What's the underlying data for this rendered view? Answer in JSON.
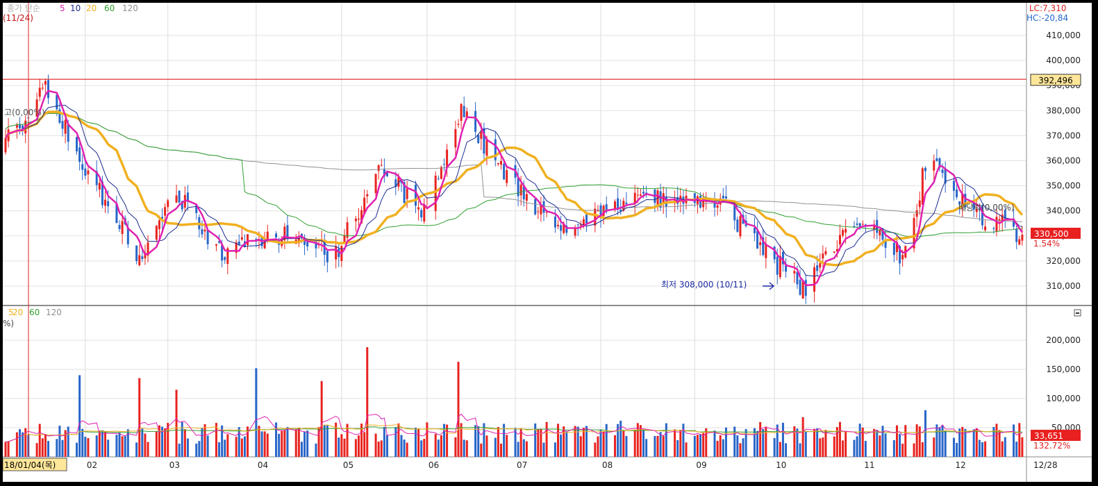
{
  "price_legend": {
    "prefix": "종가 단순",
    "items": [
      "5",
      "10",
      "20",
      "60",
      "120"
    ],
    "date": "(11/24)"
  },
  "volume_legend": {
    "items": [
      "5",
      "20",
      "60",
      "120"
    ],
    "extra": "%)"
  },
  "lc_label": "LC:7,310",
  "hc_label": "HC:-20,84",
  "left_marker": "고(0,00%)",
  "right_marker": "배당락(0,00%)",
  "low_annotation": "최저 308,000 (10/11)",
  "price_axis_ticks": [
    "410,000",
    "400,000",
    "390,000",
    "380,000",
    "370,000",
    "360,000",
    "350,000",
    "340,000",
    "330,000",
    "320,000",
    "310,000"
  ],
  "volume_axis_ticks": [
    "200,000",
    "150,000",
    "100,000",
    "50,000"
  ],
  "price_hline_label": "392,496",
  "current_price_label": "330,500",
  "current_change_label": "1.54%",
  "current_volume_label": "33,651",
  "current_volume_pct_label": "132.72%",
  "x_axis_labels": [
    "18/01/04(목)",
    "02",
    "03",
    "04",
    "05",
    "06",
    "07",
    "08",
    "09",
    "10",
    "11",
    "12",
    "12/28"
  ],
  "colors": {
    "up": "#e8231f",
    "down": "#2866c8",
    "ma5": "#e020b0",
    "ma10": "#1a2a90",
    "ma20": "#f0b020",
    "ma60": "#30a030",
    "ma120": "#909090",
    "hline": "#e02020"
  },
  "chart_data": [
    {
      "type": "candlestick",
      "title": "",
      "x_range": [
        "2018-01-04",
        "2018-12-28"
      ],
      "ylim": [
        302000,
        414000
      ],
      "monthly_price_path": [
        {
          "x": "2018-01-04",
          "y": 368000
        },
        {
          "x": "2018-01-18",
          "y": 388000
        },
        {
          "x": "2018-01-30",
          "y": 362000
        },
        {
          "x": "2018-02-20",
          "y": 322000
        },
        {
          "x": "2018-03-05",
          "y": 348000
        },
        {
          "x": "2018-03-20",
          "y": 324000
        },
        {
          "x": "2018-04-10",
          "y": 330000
        },
        {
          "x": "2018-04-30",
          "y": 322000
        },
        {
          "x": "2018-05-15",
          "y": 356000
        },
        {
          "x": "2018-05-31",
          "y": 340000
        },
        {
          "x": "2018-06-13",
          "y": 381000
        },
        {
          "x": "2018-06-29",
          "y": 352000
        },
        {
          "x": "2018-07-20",
          "y": 330000
        },
        {
          "x": "2018-08-10",
          "y": 345000
        },
        {
          "x": "2018-09-14",
          "y": 341000
        },
        {
          "x": "2018-10-11",
          "y": 308000
        },
        {
          "x": "2018-10-31",
          "y": 338000
        },
        {
          "x": "2018-11-15",
          "y": 322000
        },
        {
          "x": "2018-11-24",
          "y": 362000
        },
        {
          "x": "2018-12-10",
          "y": 340000
        },
        {
          "x": "2018-12-28",
          "y": 330500
        }
      ],
      "series": [
        {
          "name": "5",
          "kind": "moving_average",
          "period": 5
        },
        {
          "name": "10",
          "kind": "moving_average",
          "period": 10
        },
        {
          "name": "20",
          "kind": "moving_average",
          "period": 20
        },
        {
          "name": "60",
          "kind": "moving_average",
          "period": 60
        },
        {
          "name": "120",
          "kind": "moving_average",
          "period": 120
        }
      ],
      "hline": 392496,
      "last_close": 330500,
      "low": {
        "value": 308000,
        "date": "2018-10-11"
      }
    },
    {
      "type": "bar",
      "title": "",
      "ylim": [
        0,
        215000
      ],
      "approx_volume_peaks": [
        {
          "x": "2018-01-30",
          "y": 140000
        },
        {
          "x": "2018-02-20",
          "y": 135000
        },
        {
          "x": "2018-03-05",
          "y": 115000
        },
        {
          "x": "2018-04-02",
          "y": 152000
        },
        {
          "x": "2018-04-25",
          "y": 130000
        },
        {
          "x": "2018-05-11",
          "y": 188000
        },
        {
          "x": "2018-06-12",
          "y": 163000
        },
        {
          "x": "2018-08-08",
          "y": 62000
        },
        {
          "x": "2018-10-11",
          "y": 68000
        },
        {
          "x": "2018-11-23",
          "y": 80000
        },
        {
          "x": "2018-12-27",
          "y": 33651
        }
      ],
      "typical_volume": 50000,
      "last_volume": 33651
    }
  ]
}
